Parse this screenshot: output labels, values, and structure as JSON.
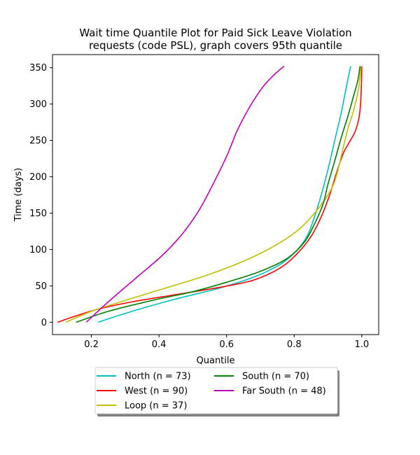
{
  "chart_data": {
    "type": "line",
    "title_lines": [
      "Wait time Quantile Plot for Paid Sick Leave Violation",
      "requests (code PSL), graph covers 95th quantile"
    ],
    "xlabel": "Quantile",
    "ylabel": "Time (days)",
    "xlim": [
      0.085,
      1.05
    ],
    "ylim": [
      -17,
      368
    ],
    "xticks": [
      0.2,
      0.4,
      0.6,
      0.8,
      1.0
    ],
    "xtick_labels": [
      "0.2",
      "0.4",
      "0.6",
      "0.8",
      "1.0"
    ],
    "yticks": [
      0,
      50,
      100,
      150,
      200,
      250,
      300,
      350
    ],
    "ytick_labels": [
      "0",
      "50",
      "100",
      "150",
      "200",
      "250",
      "300",
      "350"
    ],
    "grid": false,
    "legend_position": "below-center",
    "series": [
      {
        "name": "North (n = 73)",
        "color": "#00bfbf",
        "x": [
          0.22,
          0.32,
          0.45,
          0.58,
          0.68,
          0.76,
          0.81,
          0.84,
          0.86,
          0.88,
          0.9,
          0.92,
          0.94,
          0.955,
          0.967
        ],
        "y": [
          0,
          15,
          32,
          47,
          62,
          80,
          100,
          120,
          145,
          175,
          210,
          250,
          290,
          325,
          352
        ]
      },
      {
        "name": "West (n = 90)",
        "color": "#ff0000",
        "x": [
          0.1,
          0.15,
          0.22,
          0.32,
          0.45,
          0.58,
          0.68,
          0.76,
          0.81,
          0.85,
          0.88,
          0.905,
          0.925,
          0.945,
          0.96,
          0.98,
          0.992,
          0.997,
          0.999,
          1.0
        ],
        "y": [
          0,
          8,
          18,
          28,
          38,
          48,
          58,
          75,
          95,
          118,
          145,
          175,
          205,
          232,
          245,
          262,
          282,
          305,
          330,
          352
        ]
      },
      {
        "name": "Loop (n = 37)",
        "color": "#bfbf00",
        "x": [
          0.125,
          0.2,
          0.3,
          0.42,
          0.55,
          0.67,
          0.76,
          0.82,
          0.86,
          0.89,
          0.915,
          0.93,
          0.945,
          0.96,
          0.975,
          0.99,
          0.998
        ],
        "y": [
          0,
          15,
          30,
          47,
          66,
          88,
          110,
          130,
          150,
          168,
          188,
          210,
          240,
          268,
          290,
          320,
          352
        ]
      },
      {
        "name": "South (n = 70)",
        "color": "#008000",
        "x": [
          0.155,
          0.25,
          0.38,
          0.5,
          0.6,
          0.7,
          0.78,
          0.83,
          0.86,
          0.885,
          0.9,
          0.92,
          0.94,
          0.96,
          0.975,
          0.988,
          0.995
        ],
        "y": [
          0,
          15,
          30,
          42,
          55,
          70,
          88,
          110,
          135,
          162,
          190,
          222,
          255,
          285,
          310,
          332,
          352
        ]
      },
      {
        "name": "Far South (n = 48)",
        "color": "#bf00bf",
        "x": [
          0.185,
          0.25,
          0.33,
          0.41,
          0.47,
          0.52,
          0.56,
          0.6,
          0.63,
          0.655,
          0.68,
          0.71,
          0.74,
          0.77
        ],
        "y": [
          0,
          28,
          60,
          92,
          122,
          155,
          190,
          228,
          262,
          285,
          305,
          325,
          340,
          352
        ]
      }
    ]
  }
}
